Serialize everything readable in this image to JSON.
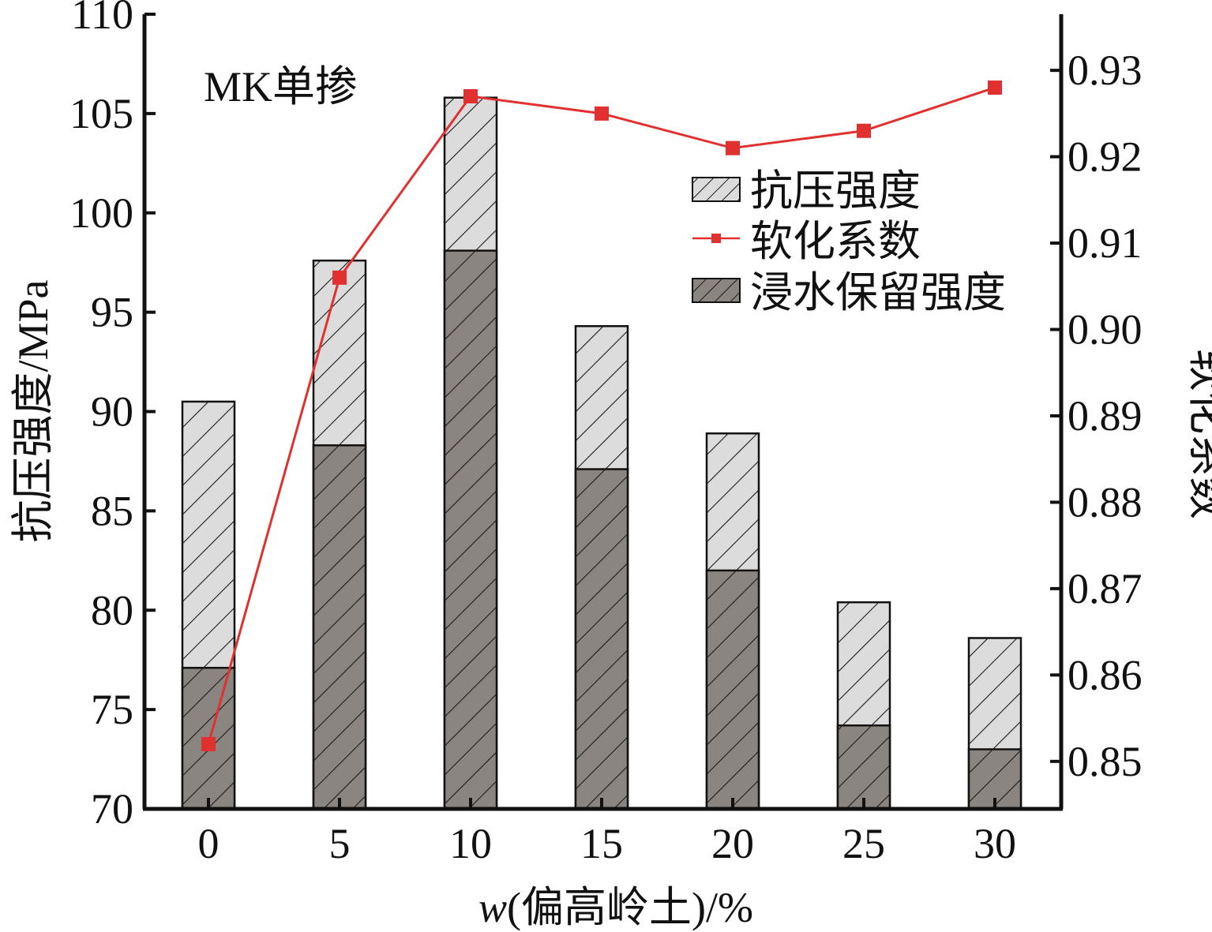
{
  "chart_data": {
    "type": "bar",
    "annotation": "MK单掺",
    "x": {
      "label_var": "w",
      "label_rest": "(偏高岭土)/%",
      "categories": [
        "0",
        "5",
        "10",
        "15",
        "20",
        "25",
        "30"
      ]
    },
    "y_left": {
      "label": "抗压强度/MPa",
      "ylim": [
        70,
        110
      ],
      "ticks": [
        "70",
        "75",
        "80",
        "85",
        "90",
        "95",
        "100",
        "105",
        "110"
      ]
    },
    "y_right": {
      "label": "软化系数",
      "ylim": [
        0.8445,
        0.9365
      ],
      "ticks": [
        "0.85",
        "0.86",
        "0.87",
        "0.88",
        "0.89",
        "0.90",
        "0.91",
        "0.92",
        "0.93"
      ]
    },
    "series": [
      {
        "name": "抗压强度",
        "kind": "bar",
        "axis": "left",
        "color": "#dcdcdc",
        "values": [
          90.5,
          97.6,
          105.8,
          94.3,
          88.9,
          80.4,
          78.6
        ]
      },
      {
        "name": "浸水保留强度",
        "kind": "bar",
        "axis": "left",
        "color": "#8a8580",
        "values": [
          77.1,
          88.3,
          98.1,
          87.1,
          82.0,
          74.2,
          73.0
        ]
      },
      {
        "name": "软化系数",
        "kind": "line",
        "axis": "right",
        "color": "#e03030",
        "values": [
          0.852,
          0.906,
          0.927,
          0.925,
          0.921,
          0.923,
          0.928
        ]
      }
    ],
    "grid": false,
    "legend_position": "top-right"
  }
}
